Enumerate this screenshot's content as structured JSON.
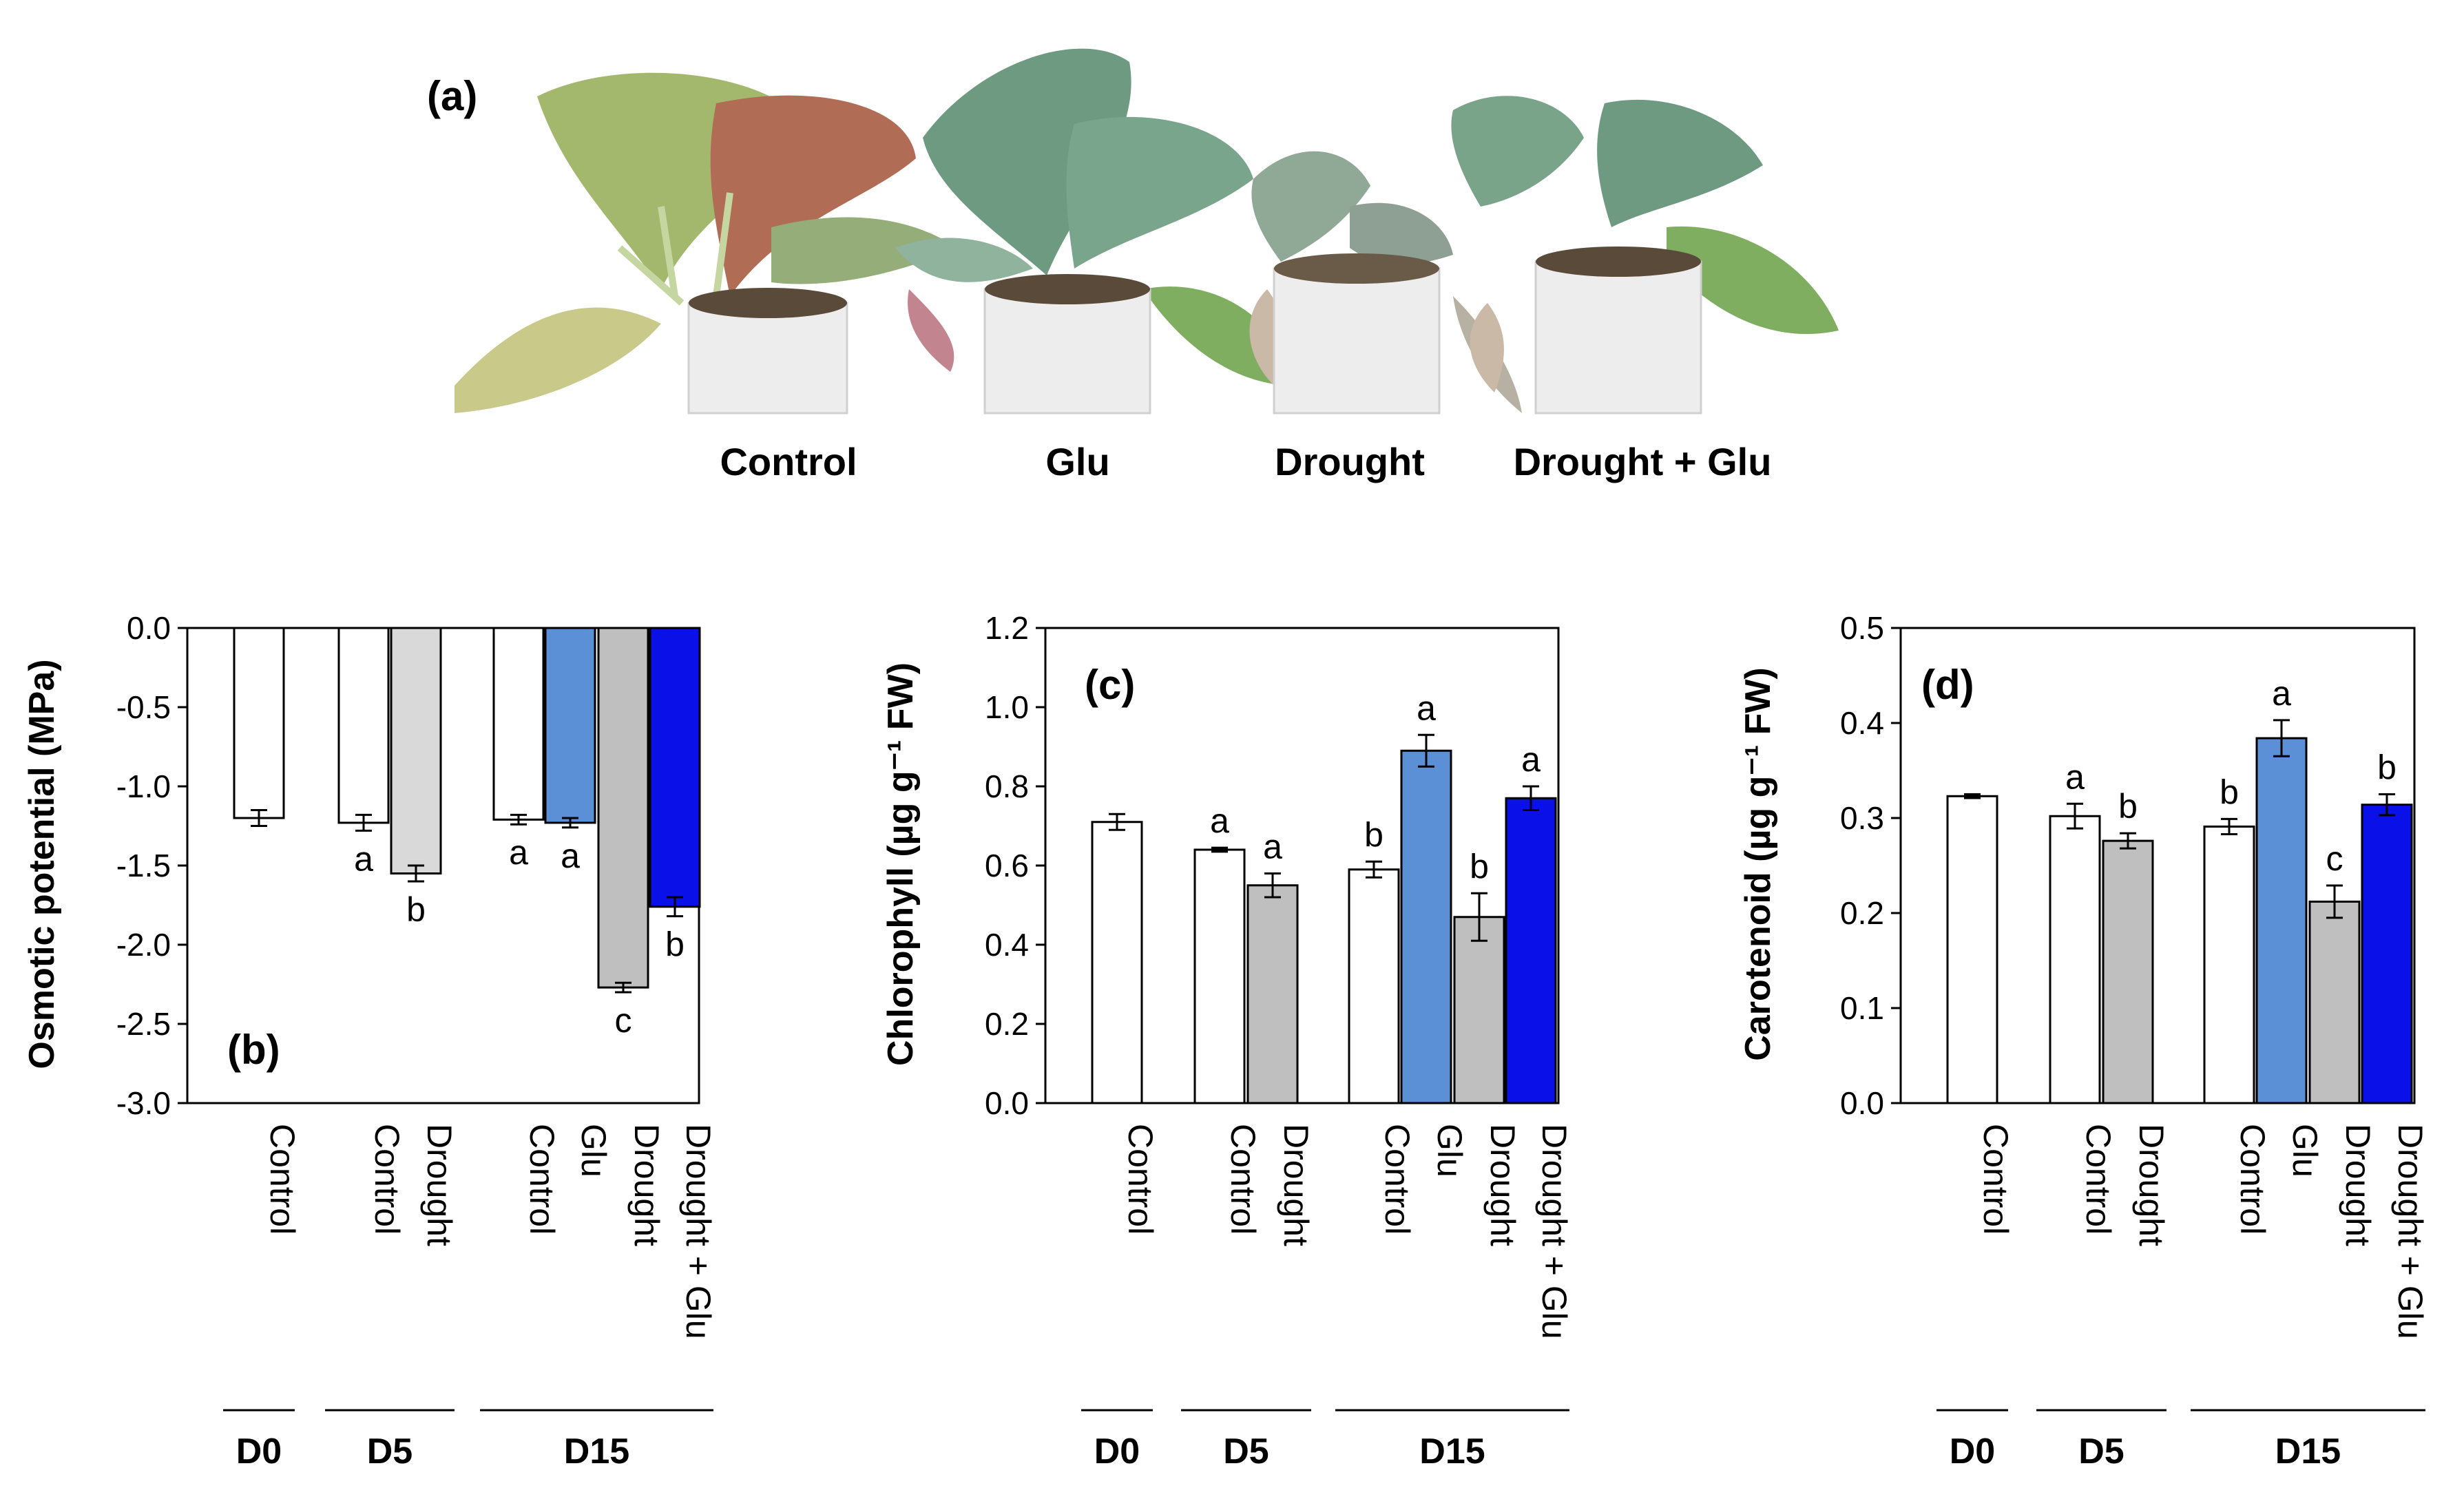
{
  "photo_panel": {
    "label": "(a)",
    "plant_labels": [
      "Control",
      "Glu",
      "Drought",
      "Drought + Glu"
    ]
  },
  "chart_data": [
    {
      "id": "b",
      "type": "bar",
      "panel_label": "(b)",
      "ylabel": "Osmotic potential (MPa)",
      "ylim": [
        -3.0,
        0.0
      ],
      "yticks": [
        0.0,
        -0.5,
        -1.0,
        -1.5,
        -2.0,
        -2.5,
        -3.0
      ],
      "tick_format": 1,
      "bars_from_top": true,
      "categories": [
        "Control",
        "Control",
        "Drought",
        "Control",
        "Glu",
        "Drought",
        "Drought + Glu"
      ],
      "groups": [
        {
          "label": "D0",
          "start": 0,
          "end": 0
        },
        {
          "label": "D5",
          "start": 1,
          "end": 2
        },
        {
          "label": "D15",
          "start": 3,
          "end": 6
        }
      ],
      "values": [
        -1.2,
        -1.23,
        -1.55,
        -1.21,
        -1.23,
        -2.27,
        -1.76
      ],
      "errors": [
        0.05,
        0.05,
        0.05,
        0.03,
        0.03,
        0.03,
        0.06
      ],
      "significance": [
        "",
        "a",
        "b",
        "a",
        "a",
        "c",
        "b"
      ],
      "colors": [
        "#ffffff",
        "#ffffff",
        "#d9d9d9",
        "#ffffff",
        "#5b8fd6",
        "#bfbfbf",
        "#0a10e8"
      ]
    },
    {
      "id": "c",
      "type": "bar",
      "panel_label": "(c)",
      "ylabel": "Chlorophyll (µg g⁻¹ FW)",
      "ylim": [
        0.0,
        1.2
      ],
      "yticks": [
        0.0,
        0.2,
        0.4,
        0.6,
        0.8,
        1.0,
        1.2
      ],
      "tick_format": 1,
      "bars_from_top": false,
      "categories": [
        "Control",
        "Control",
        "Drought",
        "Control",
        "Glu",
        "Drought",
        "Drought + Glu"
      ],
      "groups": [
        {
          "label": "D0",
          "start": 0,
          "end": 0
        },
        {
          "label": "D5",
          "start": 1,
          "end": 2
        },
        {
          "label": "D15",
          "start": 3,
          "end": 6
        }
      ],
      "values": [
        0.71,
        0.64,
        0.55,
        0.59,
        0.89,
        0.47,
        0.77
      ],
      "errors": [
        0.02,
        0.005,
        0.03,
        0.02,
        0.04,
        0.06,
        0.03
      ],
      "significance": [
        "",
        "a",
        "a",
        "b",
        "a",
        "b",
        "a"
      ],
      "colors": [
        "#ffffff",
        "#ffffff",
        "#bfbfbf",
        "#ffffff",
        "#5b8fd6",
        "#bfbfbf",
        "#0a10e8"
      ]
    },
    {
      "id": "d",
      "type": "bar",
      "panel_label": "(d)",
      "ylabel": "Carotenoid (µg g⁻¹ FW)",
      "ylim": [
        0.0,
        0.5
      ],
      "yticks": [
        0.0,
        0.1,
        0.2,
        0.3,
        0.4,
        0.5
      ],
      "tick_format": 1,
      "bars_from_top": false,
      "categories": [
        "Control",
        "Control",
        "Drought",
        "Control",
        "Glu",
        "Drought",
        "Drought + Glu"
      ],
      "groups": [
        {
          "label": "D0",
          "start": 0,
          "end": 0
        },
        {
          "label": "D5",
          "start": 1,
          "end": 2
        },
        {
          "label": "D15",
          "start": 3,
          "end": 6
        }
      ],
      "values": [
        0.323,
        0.302,
        0.276,
        0.291,
        0.384,
        0.212,
        0.314
      ],
      "errors": [
        0.002,
        0.013,
        0.008,
        0.008,
        0.019,
        0.017,
        0.011
      ],
      "significance": [
        "",
        "a",
        "b",
        "b",
        "a",
        "c",
        "b"
      ],
      "colors": [
        "#ffffff",
        "#ffffff",
        "#bfbfbf",
        "#ffffff",
        "#5b8fd6",
        "#bfbfbf",
        "#0a10e8"
      ]
    }
  ]
}
